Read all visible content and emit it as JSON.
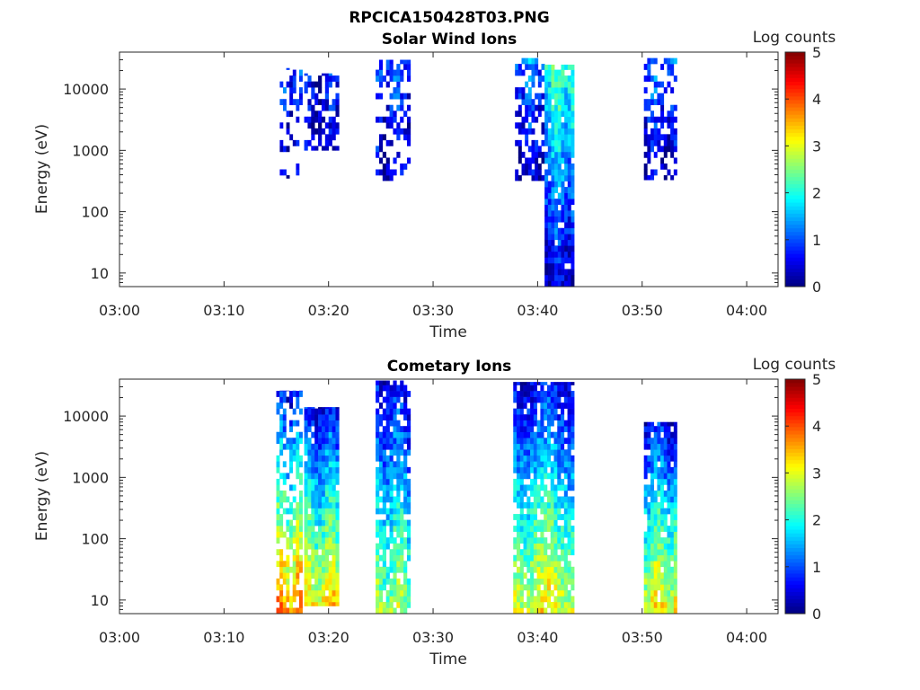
{
  "figure": {
    "title": "RPCICA150428T03.PNG"
  },
  "chart_data": [
    {
      "type": "heatmap",
      "title": "Solar Wind Ions",
      "xlabel": "Time",
      "ylabel": "Energy (eV)",
      "yscale": "log",
      "ylim": [
        6,
        40000
      ],
      "xlim": [
        "03:00",
        "04:03"
      ],
      "x_ticks": [
        "03:00",
        "03:10",
        "03:20",
        "03:30",
        "03:40",
        "03:50",
        "04:00"
      ],
      "y_ticks": [
        10,
        100,
        1000,
        10000
      ],
      "y_tick_labels": [
        "10",
        "100",
        "1000",
        "10000"
      ],
      "colorbar": {
        "label": "Log counts",
        "range": [
          0,
          5
        ],
        "ticks": [
          "0",
          "1",
          "2",
          "3",
          "4",
          "5"
        ],
        "colormap": "jet"
      },
      "grid": false,
      "bursts": [
        {
          "start": "03:15:20",
          "end": "03:17:30",
          "e_min": 350,
          "e_max": 22000,
          "level_low": 0.2,
          "level_high": 0.8,
          "fill": 0.28
        },
        {
          "start": "03:17:40",
          "end": "03:21:00",
          "e_min": 1000,
          "e_max": 18000,
          "level_low": 0.3,
          "level_high": 0.6,
          "fill": 0.5
        },
        {
          "start": "03:24:30",
          "end": "03:27:50",
          "e_min": 320,
          "e_max": 30000,
          "level_low": 0.3,
          "level_high": 1.0,
          "fill": 0.5
        },
        {
          "start": "03:37:50",
          "end": "03:40:40",
          "e_min": 320,
          "e_max": 32000,
          "level_low": 0.3,
          "level_high": 1.2,
          "fill": 0.55
        },
        {
          "start": "03:40:40",
          "end": "03:43:30",
          "e_min": 6,
          "e_max": 25000,
          "level_low": 0.4,
          "level_high": 2.2,
          "fill": 0.9
        },
        {
          "start": "03:50:10",
          "end": "03:53:20",
          "e_min": 330,
          "e_max": 32000,
          "level_low": 0.3,
          "level_high": 1.1,
          "fill": 0.55
        }
      ]
    },
    {
      "type": "heatmap",
      "title": "Cometary Ions",
      "xlabel": "Time",
      "ylabel": "Energy (eV)",
      "yscale": "log",
      "ylim": [
        6,
        40000
      ],
      "xlim": [
        "03:00",
        "04:03"
      ],
      "x_ticks": [
        "03:00",
        "03:10",
        "03:20",
        "03:30",
        "03:40",
        "03:50",
        "04:00"
      ],
      "y_ticks": [
        10,
        100,
        1000,
        10000
      ],
      "y_tick_labels": [
        "10",
        "100",
        "1000",
        "10000"
      ],
      "colorbar": {
        "label": "Log counts",
        "range": [
          0,
          5
        ],
        "ticks": [
          "0",
          "1",
          "2",
          "3",
          "4",
          "5"
        ],
        "colormap": "jet"
      },
      "grid": false,
      "bursts": [
        {
          "start": "03:15:00",
          "end": "03:17:30",
          "e_min": 6,
          "e_max": 26000,
          "level_low": 3.7,
          "level_high": 0.6,
          "fill": 0.6
        },
        {
          "start": "03:17:40",
          "end": "03:21:00",
          "e_min": 8,
          "e_max": 14000,
          "level_low": 3.2,
          "level_high": 0.6,
          "fill": 0.95
        },
        {
          "start": "03:24:30",
          "end": "03:27:50",
          "e_min": 6,
          "e_max": 38000,
          "level_low": 2.7,
          "level_high": 0.5,
          "fill": 0.85
        },
        {
          "start": "03:37:40",
          "end": "03:43:30",
          "e_min": 6,
          "e_max": 36000,
          "level_low": 3.1,
          "level_high": 0.6,
          "fill": 0.9
        },
        {
          "start": "03:50:10",
          "end": "03:53:20",
          "e_min": 6,
          "e_max": 8000,
          "level_low": 3.2,
          "level_high": 0.6,
          "fill": 0.9
        }
      ]
    }
  ]
}
